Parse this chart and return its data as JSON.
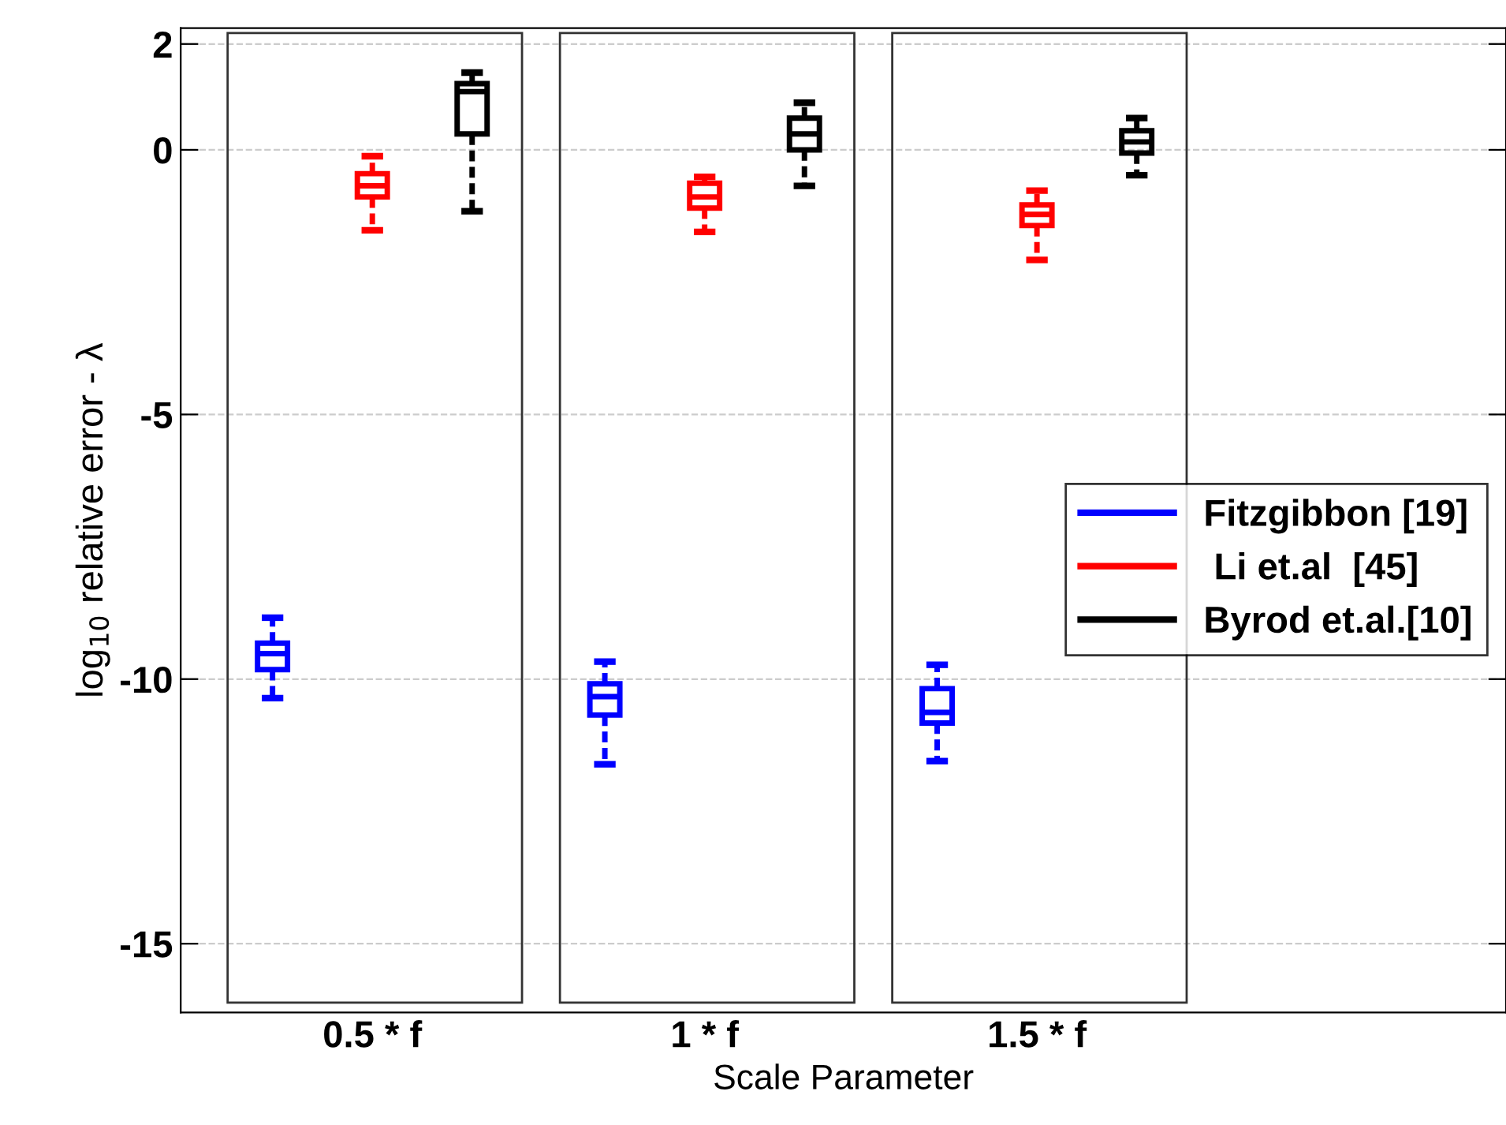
{
  "chart_data": {
    "type": "box",
    "categories": [
      "0.5 * f",
      "1 * f",
      "1.5 * f"
    ],
    "xlabel": "Scale Parameter",
    "ylabel": "log$_{10}$ relative error - λ",
    "ylim": [
      -16.3,
      2.3
    ],
    "yticks": [
      -15,
      -10,
      -5,
      0,
      2
    ],
    "grid": "y",
    "legend": "right",
    "series": [
      {
        "name": "Fitzgibbon [19]",
        "color": "#0000ff",
        "boxes": [
          {
            "low": -10.36,
            "q1": -9.82,
            "median": -9.52,
            "q3": -9.32,
            "high": -8.84
          },
          {
            "low": -11.61,
            "q1": -10.68,
            "median": -10.33,
            "q3": -10.09,
            "high": -9.67
          },
          {
            "low": -11.55,
            "q1": -10.83,
            "median": -10.63,
            "q3": -10.18,
            "high": -9.73
          }
        ]
      },
      {
        "name": " Li et.al  [45]",
        "color": "#ff0000",
        "boxes": [
          {
            "low": -1.52,
            "q1": -0.89,
            "median": -0.68,
            "q3": -0.45,
            "high": -0.12
          },
          {
            "low": -1.55,
            "q1": -1.1,
            "median": -0.89,
            "q3": -0.63,
            "high": -0.51
          },
          {
            "low": -2.08,
            "q1": -1.43,
            "median": -1.22,
            "q3": -1.04,
            "high": -0.77
          }
        ]
      },
      {
        "name": "Byrod et.al.[10]",
        "color": "#000000",
        "boxes": [
          {
            "low": -1.16,
            "q1": 0.3,
            "median": 1.1,
            "q3": 1.25,
            "high": 1.46
          },
          {
            "low": -0.68,
            "q1": 0.0,
            "median": 0.3,
            "q3": 0.6,
            "high": 0.89
          },
          {
            "low": -0.48,
            "q1": -0.06,
            "median": 0.15,
            "q3": 0.36,
            "high": 0.6
          }
        ]
      }
    ]
  }
}
